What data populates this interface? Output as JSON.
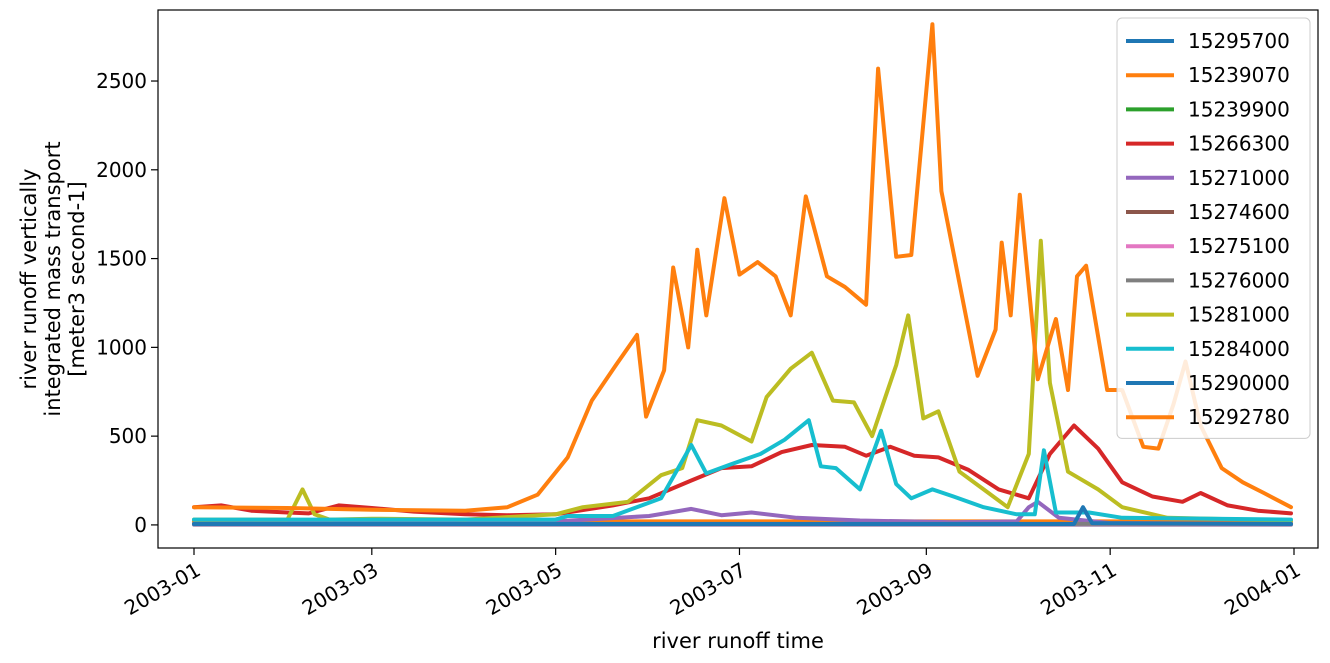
{
  "chart_data": {
    "type": "line",
    "xlabel": "river runoff time",
    "ylabel_lines": [
      "river runoff vertically",
      "integrated mass transport",
      "[meter3 second-1]"
    ],
    "x_ticks": [
      "2003-01",
      "2003-03",
      "2003-05",
      "2003-07",
      "2003-09",
      "2003-11",
      "2004-01"
    ],
    "y_ticks": [
      "0",
      "500",
      "1000",
      "1500",
      "2000",
      "2500"
    ],
    "x_range": [
      "2003-01-01",
      "2004-01-01"
    ],
    "ylim": [
      -130,
      2900
    ],
    "grid": false,
    "legend_position": "top-right",
    "series": [
      {
        "name": "15295700",
        "color": "#1f77b4",
        "points": [
          [
            "2003-01-01",
            2
          ],
          [
            "2003-12-31",
            2
          ]
        ]
      },
      {
        "name": "15239070",
        "color": "#ff7f0e",
        "points": [
          [
            "2003-01-01",
            20
          ],
          [
            "2003-12-31",
            20
          ]
        ]
      },
      {
        "name": "15239900",
        "color": "#2ca02c",
        "points": [
          [
            "2003-01-01",
            5
          ],
          [
            "2003-12-31",
            5
          ]
        ]
      },
      {
        "name": "15266300",
        "color": "#d62728",
        "points": [
          [
            "2003-01-01",
            100
          ],
          [
            "2003-01-10",
            110
          ],
          [
            "2003-01-20",
            80
          ],
          [
            "2003-02-01",
            70
          ],
          [
            "2003-02-08",
            65
          ],
          [
            "2003-02-18",
            110
          ],
          [
            "2003-03-01",
            95
          ],
          [
            "2003-03-15",
            75
          ],
          [
            "2003-04-01",
            60
          ],
          [
            "2003-04-15",
            55
          ],
          [
            "2003-05-01",
            60
          ],
          [
            "2003-05-20",
            110
          ],
          [
            "2003-06-01",
            150
          ],
          [
            "2003-06-15",
            250
          ],
          [
            "2003-06-25",
            320
          ],
          [
            "2003-07-05",
            330
          ],
          [
            "2003-07-15",
            410
          ],
          [
            "2003-07-25",
            450
          ],
          [
            "2003-08-05",
            440
          ],
          [
            "2003-08-12",
            390
          ],
          [
            "2003-08-20",
            440
          ],
          [
            "2003-08-28",
            390
          ],
          [
            "2003-09-05",
            380
          ],
          [
            "2003-09-15",
            310
          ],
          [
            "2003-09-25",
            200
          ],
          [
            "2003-10-05",
            150
          ],
          [
            "2003-10-12",
            400
          ],
          [
            "2003-10-20",
            560
          ],
          [
            "2003-10-28",
            430
          ],
          [
            "2003-11-05",
            240
          ],
          [
            "2003-11-15",
            160
          ],
          [
            "2003-11-25",
            130
          ],
          [
            "2003-12-01",
            180
          ],
          [
            "2003-12-10",
            110
          ],
          [
            "2003-12-20",
            80
          ],
          [
            "2003-12-31",
            65
          ]
        ]
      },
      {
        "name": "15271000",
        "color": "#9467bd",
        "points": [
          [
            "2003-01-01",
            5
          ],
          [
            "2003-05-01",
            20
          ],
          [
            "2003-06-01",
            50
          ],
          [
            "2003-06-15",
            90
          ],
          [
            "2003-06-25",
            55
          ],
          [
            "2003-07-05",
            70
          ],
          [
            "2003-07-20",
            40
          ],
          [
            "2003-08-10",
            25
          ],
          [
            "2003-09-10",
            15
          ],
          [
            "2003-10-01",
            20
          ],
          [
            "2003-10-05",
            100
          ],
          [
            "2003-10-08",
            130
          ],
          [
            "2003-10-15",
            40
          ],
          [
            "2003-11-01",
            10
          ],
          [
            "2003-12-31",
            5
          ]
        ]
      },
      {
        "name": "15274600",
        "color": "#8c564b",
        "points": [
          [
            "2003-01-01",
            3
          ],
          [
            "2003-12-31",
            3
          ]
        ]
      },
      {
        "name": "15275100",
        "color": "#e377c2",
        "points": [
          [
            "2003-01-01",
            4
          ],
          [
            "2003-12-31",
            4
          ]
        ]
      },
      {
        "name": "15276000",
        "color": "#7f7f7f",
        "points": [
          [
            "2003-01-01",
            6
          ],
          [
            "2003-12-31",
            6
          ]
        ]
      },
      {
        "name": "15281000",
        "color": "#bcbd22",
        "points": [
          [
            "2003-01-01",
            30
          ],
          [
            "2003-02-01",
            30
          ],
          [
            "2003-02-06",
            200
          ],
          [
            "2003-02-10",
            60
          ],
          [
            "2003-02-15",
            30
          ],
          [
            "2003-03-01",
            35
          ],
          [
            "2003-04-01",
            30
          ],
          [
            "2003-05-01",
            60
          ],
          [
            "2003-05-10",
            100
          ],
          [
            "2003-05-25",
            130
          ],
          [
            "2003-06-05",
            280
          ],
          [
            "2003-06-12",
            320
          ],
          [
            "2003-06-17",
            590
          ],
          [
            "2003-06-25",
            560
          ],
          [
            "2003-07-05",
            470
          ],
          [
            "2003-07-10",
            720
          ],
          [
            "2003-07-18",
            880
          ],
          [
            "2003-07-25",
            970
          ],
          [
            "2003-08-01",
            700
          ],
          [
            "2003-08-08",
            690
          ],
          [
            "2003-08-14",
            500
          ],
          [
            "2003-08-22",
            900
          ],
          [
            "2003-08-26",
            1180
          ],
          [
            "2003-08-31",
            600
          ],
          [
            "2003-09-05",
            640
          ],
          [
            "2003-09-12",
            300
          ],
          [
            "2003-09-20",
            200
          ],
          [
            "2003-09-28",
            100
          ],
          [
            "2003-10-05",
            400
          ],
          [
            "2003-10-09",
            1600
          ],
          [
            "2003-10-12",
            800
          ],
          [
            "2003-10-18",
            300
          ],
          [
            "2003-10-28",
            200
          ],
          [
            "2003-11-05",
            100
          ],
          [
            "2003-11-20",
            40
          ],
          [
            "2003-12-31",
            25
          ]
        ]
      },
      {
        "name": "15284000",
        "color": "#17becf",
        "points": [
          [
            "2003-01-01",
            30
          ],
          [
            "2003-03-01",
            30
          ],
          [
            "2003-05-01",
            30
          ],
          [
            "2003-05-05",
            50
          ],
          [
            "2003-05-20",
            50
          ],
          [
            "2003-06-05",
            150
          ],
          [
            "2003-06-15",
            450
          ],
          [
            "2003-06-20",
            290
          ],
          [
            "2003-06-28",
            340
          ],
          [
            "2003-07-08",
            400
          ],
          [
            "2003-07-16",
            480
          ],
          [
            "2003-07-24",
            590
          ],
          [
            "2003-07-28",
            330
          ],
          [
            "2003-08-02",
            320
          ],
          [
            "2003-08-10",
            200
          ],
          [
            "2003-08-17",
            530
          ],
          [
            "2003-08-22",
            230
          ],
          [
            "2003-08-27",
            150
          ],
          [
            "2003-09-03",
            200
          ],
          [
            "2003-09-10",
            160
          ],
          [
            "2003-09-20",
            100
          ],
          [
            "2003-10-01",
            60
          ],
          [
            "2003-10-07",
            60
          ],
          [
            "2003-10-10",
            420
          ],
          [
            "2003-10-14",
            70
          ],
          [
            "2003-10-25",
            70
          ],
          [
            "2003-11-05",
            40
          ],
          [
            "2003-12-31",
            30
          ]
        ]
      },
      {
        "name": "15290000",
        "color": "#1f77b4",
        "points": [
          [
            "2003-01-01",
            5
          ],
          [
            "2003-10-20",
            5
          ],
          [
            "2003-10-23",
            100
          ],
          [
            "2003-10-26",
            10
          ],
          [
            "2003-12-31",
            5
          ]
        ]
      },
      {
        "name": "15292780",
        "color": "#ff7f0e",
        "points": [
          [
            "2003-01-01",
            100
          ],
          [
            "2003-02-01",
            95
          ],
          [
            "2003-03-01",
            85
          ],
          [
            "2003-04-01",
            80
          ],
          [
            "2003-04-15",
            100
          ],
          [
            "2003-04-25",
            170
          ],
          [
            "2003-05-05",
            380
          ],
          [
            "2003-05-13",
            700
          ],
          [
            "2003-05-21",
            900
          ],
          [
            "2003-05-28",
            1070
          ],
          [
            "2003-05-31",
            610
          ],
          [
            "2003-06-06",
            870
          ],
          [
            "2003-06-09",
            1450
          ],
          [
            "2003-06-14",
            1000
          ],
          [
            "2003-06-17",
            1550
          ],
          [
            "2003-06-20",
            1180
          ],
          [
            "2003-06-26",
            1840
          ],
          [
            "2003-07-01",
            1410
          ],
          [
            "2003-07-07",
            1480
          ],
          [
            "2003-07-13",
            1400
          ],
          [
            "2003-07-18",
            1180
          ],
          [
            "2003-07-23",
            1850
          ],
          [
            "2003-07-30",
            1400
          ],
          [
            "2003-08-05",
            1340
          ],
          [
            "2003-08-12",
            1240
          ],
          [
            "2003-08-16",
            2570
          ],
          [
            "2003-08-22",
            1510
          ],
          [
            "2003-08-27",
            1520
          ],
          [
            "2003-09-03",
            2820
          ],
          [
            "2003-09-06",
            1880
          ],
          [
            "2003-09-12",
            1360
          ],
          [
            "2003-09-18",
            840
          ],
          [
            "2003-09-24",
            1100
          ],
          [
            "2003-09-26",
            1590
          ],
          [
            "2003-09-29",
            1180
          ],
          [
            "2003-10-02",
            1860
          ],
          [
            "2003-10-08",
            820
          ],
          [
            "2003-10-14",
            1160
          ],
          [
            "2003-10-18",
            760
          ],
          [
            "2003-10-21",
            1400
          ],
          [
            "2003-10-24",
            1460
          ],
          [
            "2003-10-31",
            760
          ],
          [
            "2003-11-05",
            760
          ],
          [
            "2003-11-12",
            440
          ],
          [
            "2003-11-17",
            430
          ],
          [
            "2003-11-22",
            680
          ],
          [
            "2003-11-26",
            920
          ],
          [
            "2003-12-01",
            560
          ],
          [
            "2003-12-08",
            320
          ],
          [
            "2003-12-15",
            240
          ],
          [
            "2003-12-22",
            180
          ],
          [
            "2003-12-31",
            100
          ]
        ]
      }
    ]
  }
}
